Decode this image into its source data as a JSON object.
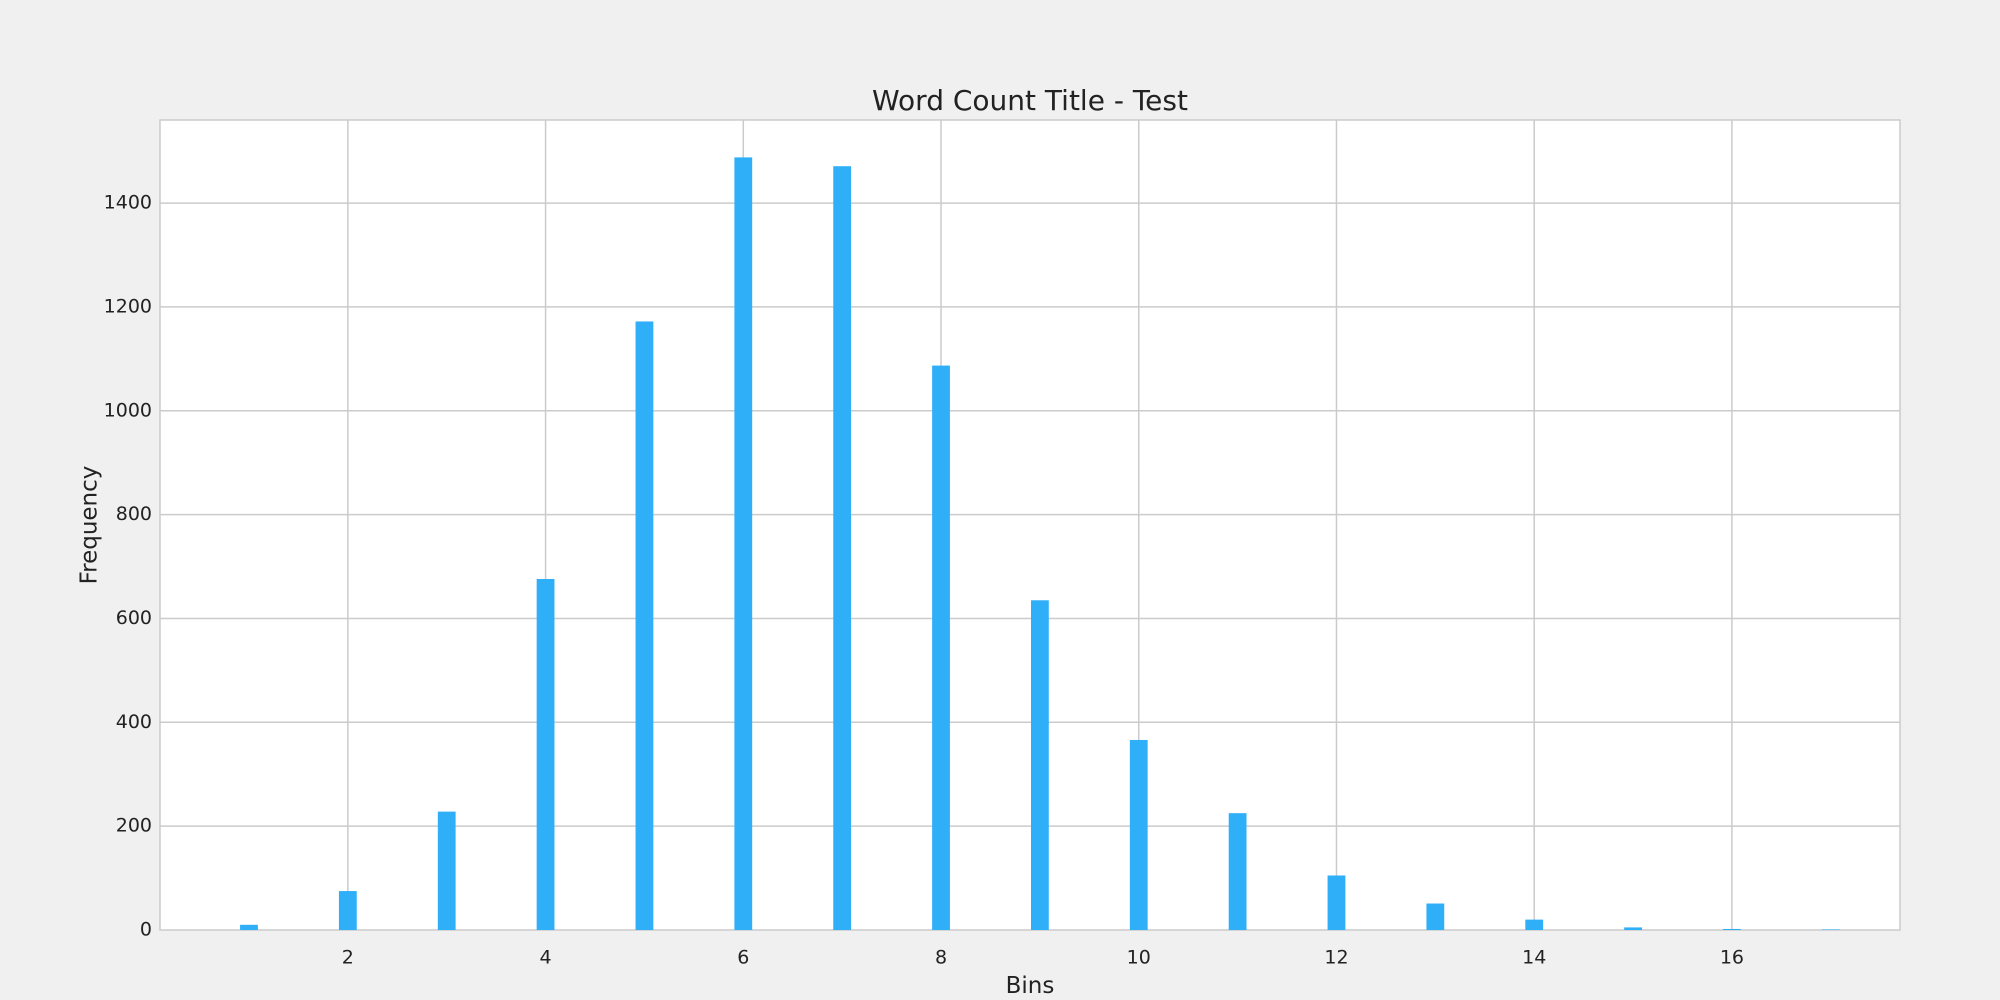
{
  "chart_data": {
    "type": "bar",
    "title": "Word Count Title - Test",
    "xlabel": "Bins",
    "ylabel": "Frequency",
    "x": [
      1,
      2,
      3,
      4,
      5,
      6,
      7,
      8,
      9,
      10,
      11,
      12,
      13,
      14,
      15,
      16,
      17
    ],
    "values": [
      10,
      75,
      228,
      676,
      1172,
      1488,
      1471,
      1087,
      635,
      366,
      225,
      105,
      51,
      20,
      5,
      2,
      1
    ],
    "xlim": [
      0.1,
      17.7
    ],
    "ylim": [
      0,
      1560
    ],
    "xticks": [
      2,
      4,
      6,
      8,
      10,
      12,
      14,
      16
    ],
    "yticks": [
      0,
      200,
      400,
      600,
      800,
      1000,
      1200,
      1400
    ],
    "grid": true,
    "legend": "none",
    "colors": {
      "bar": "#2eaff8",
      "background": "#f0f0f0",
      "plot_background": "#ffffff",
      "grid": "#cbcbcb",
      "text": "#222222"
    }
  }
}
